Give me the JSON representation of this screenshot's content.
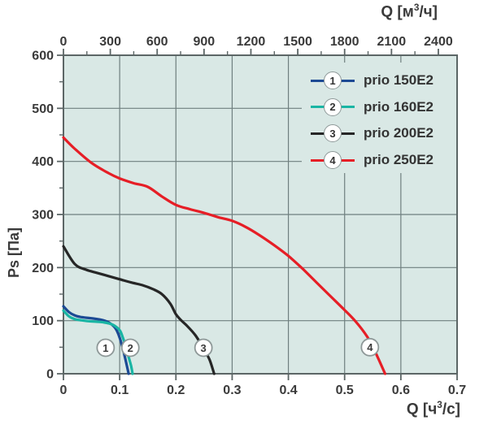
{
  "chart_data": {
    "type": "line",
    "left_axis": {
      "label": "Ps [Па]",
      "min": 0,
      "max": 600,
      "major_ticks": [
        0,
        100,
        200,
        300,
        400,
        500,
        600
      ],
      "tick_labels": [
        "0",
        "100",
        "200",
        "300",
        "400",
        "500",
        "600"
      ],
      "minor_ticks": [
        50,
        150,
        250,
        350,
        450,
        550
      ]
    },
    "bottom_axis": {
      "label_pre": "Q [ч",
      "label_sup": "3",
      "label_post": "/с]",
      "min": 0,
      "max": 0.7,
      "major_ticks": [
        0,
        0.1,
        0.2,
        0.3,
        0.4,
        0.5,
        0.6,
        0.7
      ],
      "tick_labels": [
        "0",
        "0.1",
        "0.2",
        "0.3",
        "0.4",
        "0.5",
        "0.6",
        "0.7"
      ]
    },
    "top_axis": {
      "label_pre": "Q [м",
      "label_sup": "3",
      "label_post": "/ч]",
      "unit_ratio_to_bottom": 3600,
      "major_ticks": [
        0,
        300,
        600,
        900,
        1200,
        1500,
        1800,
        2100,
        2400
      ],
      "tick_labels": [
        "0",
        "300",
        "600",
        "900",
        "1200",
        "1500",
        "1800",
        "2100",
        "2400"
      ],
      "minor_ticks": [
        150,
        450,
        750,
        1050,
        1350,
        1650,
        1950,
        2250
      ]
    },
    "grid": {
      "x_lines": [
        0.1,
        0.2,
        0.3,
        0.4,
        0.5,
        0.6
      ],
      "y_lines": [
        100,
        200,
        300,
        400,
        500
      ]
    },
    "series": [
      {
        "num": "1",
        "name": "prio 150E2",
        "color": "#1c4a94",
        "marker": {
          "q": 0.075,
          "p": 49
        },
        "points": [
          [
            0,
            127
          ],
          [
            0.01,
            116
          ],
          [
            0.02,
            110
          ],
          [
            0.03,
            107
          ],
          [
            0.045,
            105
          ],
          [
            0.06,
            103
          ],
          [
            0.07,
            101
          ],
          [
            0.08,
            97
          ],
          [
            0.09,
            89
          ],
          [
            0.095,
            81
          ],
          [
            0.1,
            68
          ],
          [
            0.105,
            50
          ],
          [
            0.11,
            28
          ],
          [
            0.116,
            0
          ]
        ]
      },
      {
        "num": "2",
        "name": "prio 160E2",
        "color": "#19b5a4",
        "marker": {
          "q": 0.119,
          "p": 49
        },
        "points": [
          [
            0,
            119
          ],
          [
            0.01,
            108
          ],
          [
            0.02,
            103
          ],
          [
            0.03,
            101
          ],
          [
            0.045,
            99
          ],
          [
            0.06,
            98
          ],
          [
            0.07,
            97
          ],
          [
            0.08,
            95
          ],
          [
            0.09,
            91
          ],
          [
            0.1,
            82
          ],
          [
            0.105,
            70
          ],
          [
            0.11,
            54
          ],
          [
            0.115,
            35
          ],
          [
            0.12,
            16
          ],
          [
            0.123,
            0
          ]
        ]
      },
      {
        "num": "3",
        "name": "prio 200E2",
        "color": "#262626",
        "marker": {
          "q": 0.249,
          "p": 49
        },
        "points": [
          [
            0,
            240
          ],
          [
            0.02,
            207
          ],
          [
            0.04,
            196
          ],
          [
            0.06,
            190
          ],
          [
            0.08,
            184
          ],
          [
            0.1,
            178
          ],
          [
            0.12,
            172
          ],
          [
            0.14,
            167
          ],
          [
            0.16,
            159
          ],
          [
            0.175,
            150
          ],
          [
            0.19,
            132
          ],
          [
            0.2,
            112
          ],
          [
            0.21,
            100
          ],
          [
            0.22,
            90
          ],
          [
            0.235,
            72
          ],
          [
            0.25,
            46
          ],
          [
            0.26,
            26
          ],
          [
            0.268,
            0
          ]
        ]
      },
      {
        "num": "4",
        "name": "prio 250E2",
        "color": "#e61e26",
        "marker": {
          "q": 0.545,
          "p": 50
        },
        "points": [
          [
            0,
            445
          ],
          [
            0.02,
            424
          ],
          [
            0.05,
            397
          ],
          [
            0.08,
            378
          ],
          [
            0.1,
            368
          ],
          [
            0.125,
            359
          ],
          [
            0.15,
            352
          ],
          [
            0.175,
            334
          ],
          [
            0.2,
            318
          ],
          [
            0.225,
            310
          ],
          [
            0.25,
            303
          ],
          [
            0.275,
            295
          ],
          [
            0.3,
            288
          ],
          [
            0.325,
            276
          ],
          [
            0.35,
            260
          ],
          [
            0.375,
            242
          ],
          [
            0.4,
            222
          ],
          [
            0.425,
            198
          ],
          [
            0.45,
            172
          ],
          [
            0.475,
            146
          ],
          [
            0.5,
            120
          ],
          [
            0.52,
            98
          ],
          [
            0.54,
            70
          ],
          [
            0.555,
            40
          ],
          [
            0.572,
            0
          ]
        ]
      }
    ],
    "colors": {
      "plot_bg": "#d9e8e5",
      "grid": "#6f7f7f",
      "frame": "#5c6666",
      "text": "#3a3a3a",
      "marker_fill": "#ffffff",
      "marker_border": "#8e9898"
    }
  },
  "legend": {
    "items": [
      {
        "num": "1",
        "label": "prio 150E2",
        "color": "#1c4a94"
      },
      {
        "num": "2",
        "label": "prio 160E2",
        "color": "#19b5a4"
      },
      {
        "num": "3",
        "label": "prio 200E2",
        "color": "#262626"
      },
      {
        "num": "4",
        "label": "prio 250E2",
        "color": "#e61e26"
      }
    ]
  }
}
